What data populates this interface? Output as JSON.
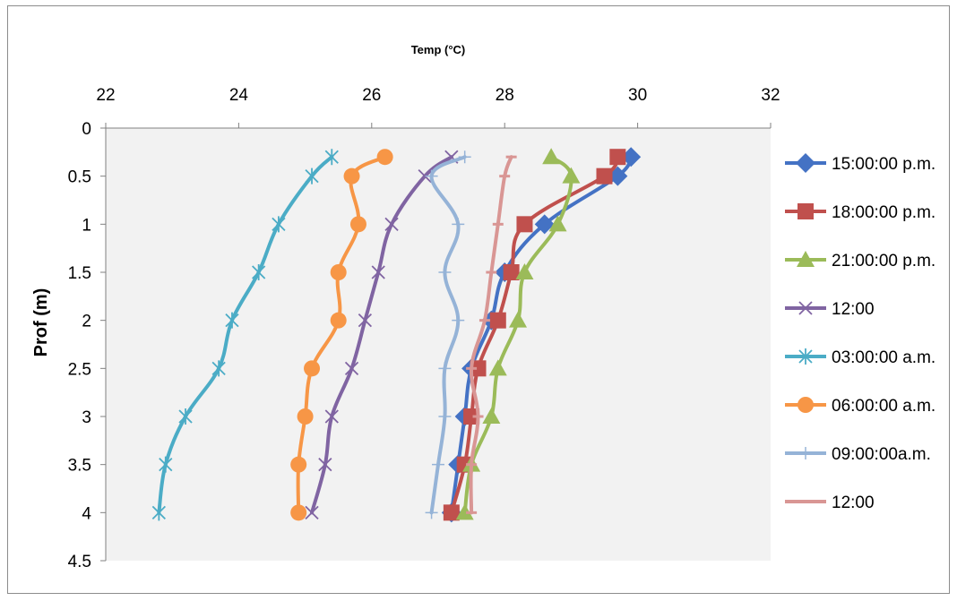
{
  "chart_data": {
    "type": "line",
    "xlabel": "Temp (°C)",
    "ylabel": "Prof (m)",
    "xlim": [
      22,
      32
    ],
    "ylim": [
      0,
      4.5
    ],
    "x_ticks": [
      "22",
      "24",
      "26",
      "28",
      "30",
      "32"
    ],
    "y_ticks": [
      "0",
      "0.5",
      "1",
      "1.5",
      "2",
      "2.5",
      "3",
      "3.5",
      "4",
      "4.5"
    ],
    "x_axis_position": "top",
    "y_axis_inverted": true,
    "grid": false,
    "legend_position": "right",
    "depths": [
      0.3,
      0.5,
      1,
      1.5,
      2,
      2.5,
      3,
      3.5,
      4
    ],
    "series": [
      {
        "name": "15:00:00 p.m.",
        "color": "#4472C4",
        "marker": "diamond",
        "values": [
          29.9,
          29.7,
          28.6,
          28.0,
          27.8,
          27.5,
          27.4,
          27.3,
          27.2
        ]
      },
      {
        "name": "18:00:00 p.m.",
        "color": "#C0504D",
        "marker": "square",
        "values": [
          29.7,
          29.5,
          28.3,
          28.1,
          27.9,
          27.6,
          27.5,
          27.4,
          27.2
        ]
      },
      {
        "name": "21:00:00 p.m.",
        "color": "#9BBB59",
        "marker": "triangle",
        "values": [
          28.7,
          29.0,
          28.8,
          28.3,
          28.2,
          27.9,
          27.8,
          27.5,
          27.4
        ]
      },
      {
        "name": "12:00",
        "color": "#8064A2",
        "marker": "x",
        "values": [
          27.2,
          26.8,
          26.3,
          26.1,
          25.9,
          25.7,
          25.4,
          25.3,
          25.1
        ]
      },
      {
        "name": "03:00:00 a.m.",
        "color": "#4BACC6",
        "marker": "star",
        "values": [
          25.4,
          25.1,
          24.6,
          24.3,
          23.9,
          23.7,
          23.2,
          22.9,
          22.8
        ]
      },
      {
        "name": "06:00:00 a.m.",
        "color": "#F79646",
        "marker": "circle",
        "values": [
          26.2,
          25.7,
          25.8,
          25.5,
          25.5,
          25.1,
          25.0,
          24.9,
          24.9
        ]
      },
      {
        "name": "09:00:00a.m.",
        "color": "#95B3D7",
        "marker": "plus",
        "values": [
          27.4,
          26.9,
          27.3,
          27.1,
          27.3,
          27.1,
          27.1,
          27.0,
          26.9
        ]
      },
      {
        "name": "12:00",
        "color": "#D99694",
        "marker": "dash",
        "values": [
          28.1,
          28.0,
          27.9,
          27.8,
          27.7,
          27.5,
          27.6,
          27.5,
          27.5
        ]
      }
    ]
  }
}
